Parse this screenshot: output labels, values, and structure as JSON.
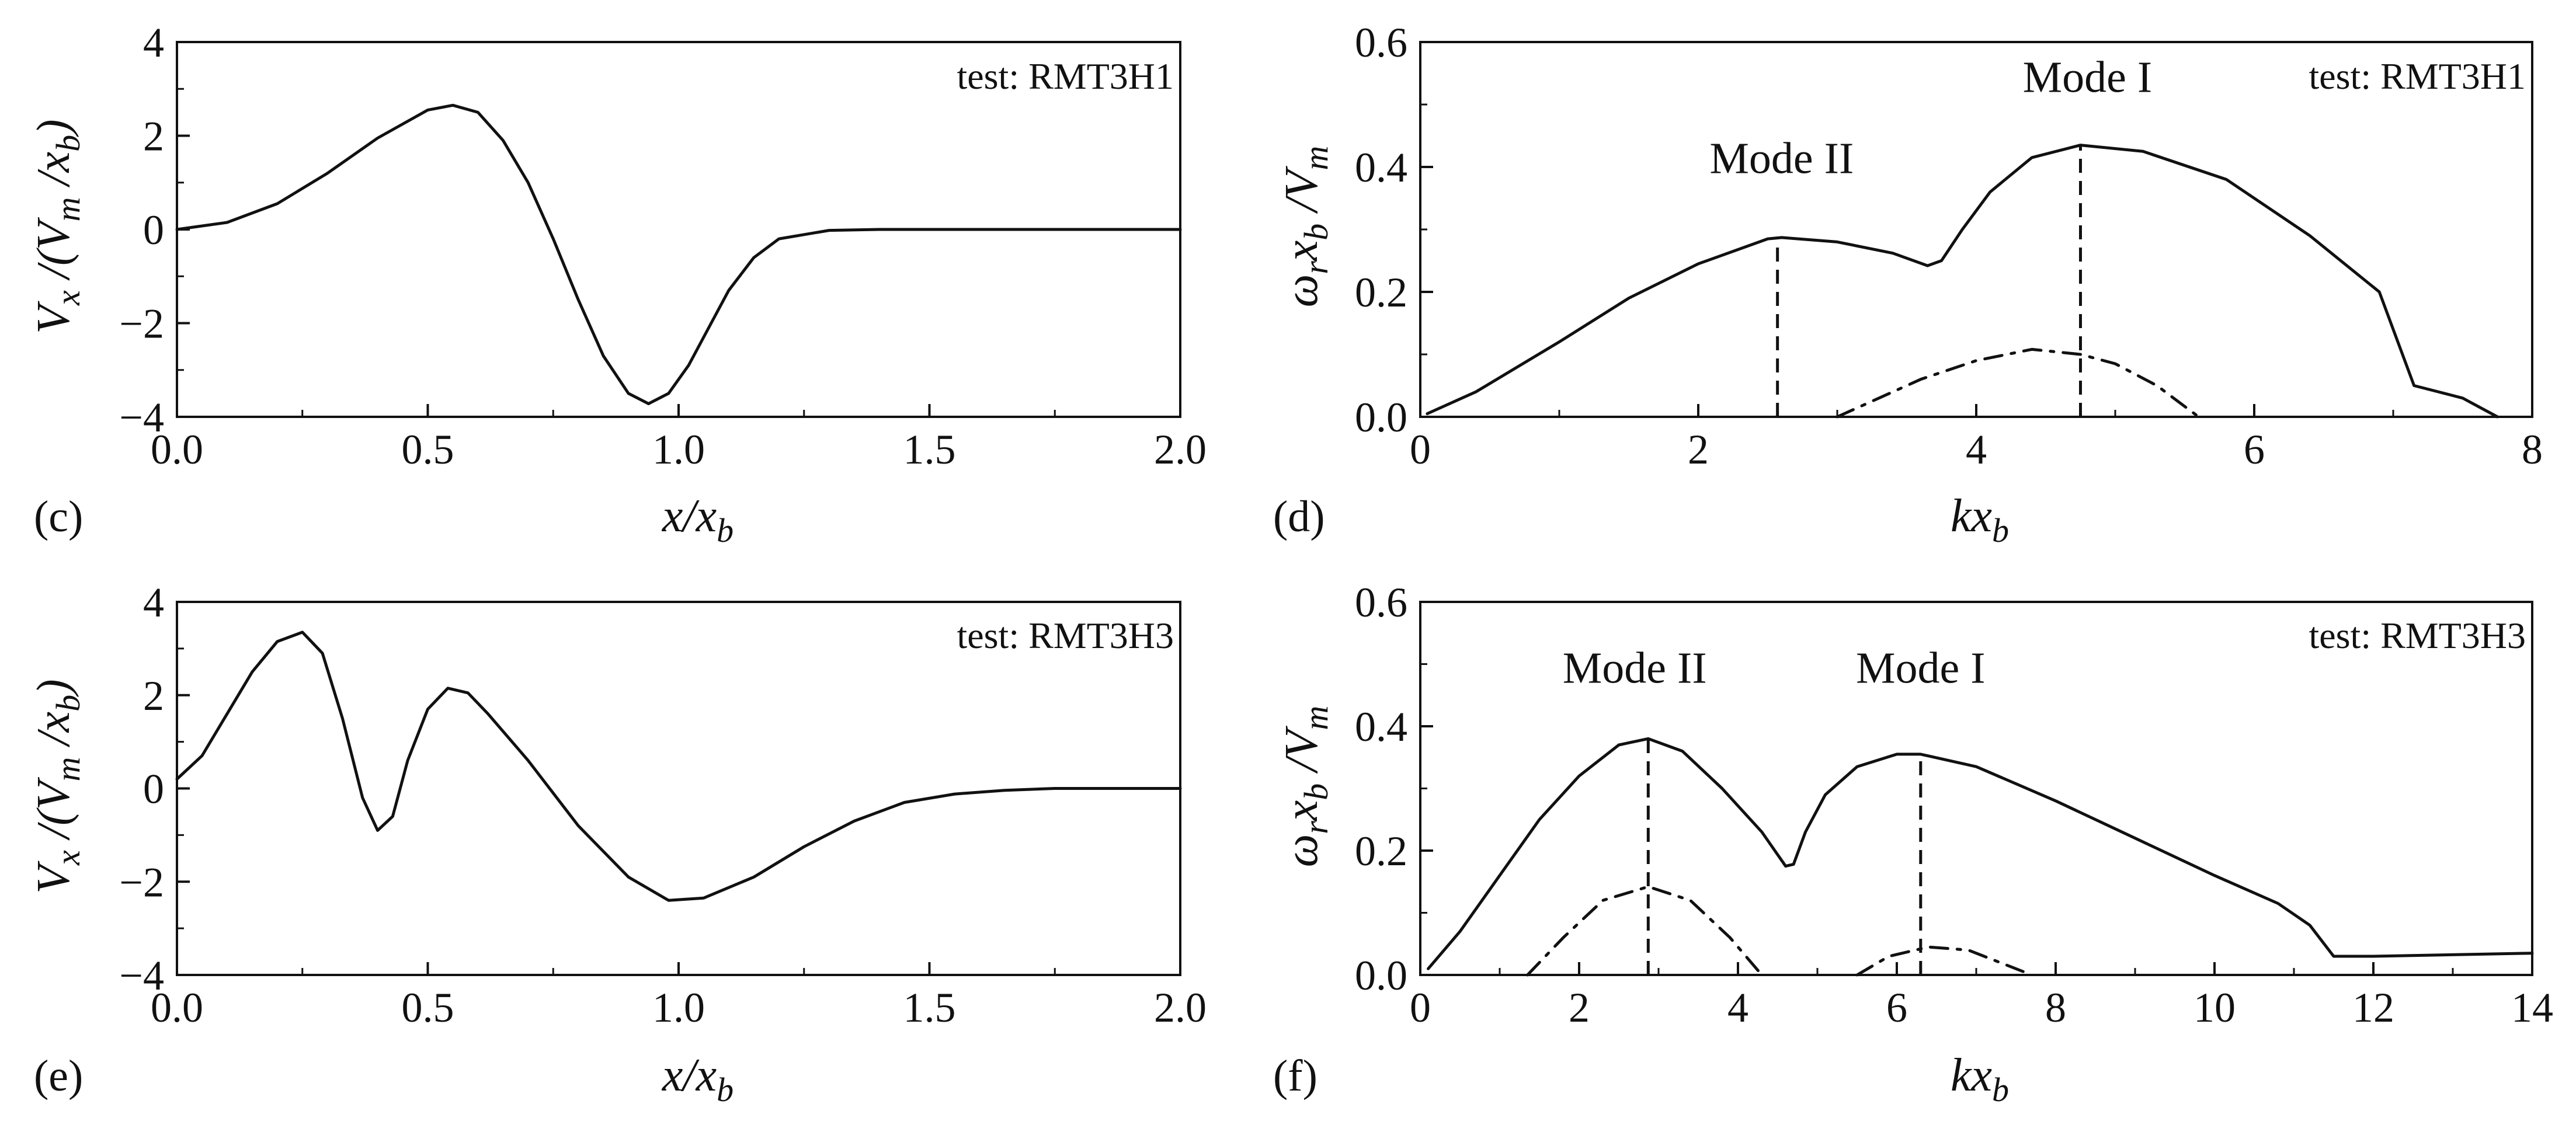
{
  "chart_data": [
    {
      "id": "c",
      "panel_letter": "(c)",
      "type": "line",
      "xlabel": "x/x_b",
      "ylabel": "V_x/(V_m/x_b)",
      "xlim": [
        0,
        2
      ],
      "ylim": [
        -4,
        4
      ],
      "xticks": [
        0,
        0.5,
        1,
        1.5,
        2
      ],
      "xtick_labels": [
        "0.0",
        "0.5",
        "1.0",
        "1.5",
        "2.0"
      ],
      "yticks": [
        -4,
        -2,
        0,
        2,
        4
      ],
      "ytick_labels": [
        "−4",
        "−2",
        "0",
        "2",
        "4"
      ],
      "test_label": "test: RMT3H1",
      "annotations": [],
      "series": [
        {
          "style": "solid",
          "points": [
            [
              0,
              0
            ],
            [
              0.1,
              0.15
            ],
            [
              0.2,
              0.55
            ],
            [
              0.3,
              1.2
            ],
            [
              0.4,
              1.95
            ],
            [
              0.5,
              2.55
            ],
            [
              0.55,
              2.65
            ],
            [
              0.6,
              2.5
            ],
            [
              0.65,
              1.9
            ],
            [
              0.7,
              1.0
            ],
            [
              0.75,
              -0.2
            ],
            [
              0.8,
              -1.5
            ],
            [
              0.85,
              -2.7
            ],
            [
              0.9,
              -3.5
            ],
            [
              0.94,
              -3.72
            ],
            [
              0.98,
              -3.5
            ],
            [
              1.02,
              -2.9
            ],
            [
              1.06,
              -2.1
            ],
            [
              1.1,
              -1.3
            ],
            [
              1.15,
              -0.6
            ],
            [
              1.2,
              -0.2
            ],
            [
              1.3,
              -0.02
            ],
            [
              1.4,
              0
            ],
            [
              2.0,
              0
            ]
          ]
        }
      ]
    },
    {
      "id": "d",
      "panel_letter": "(d)",
      "type": "line",
      "xlabel": "kx_b",
      "ylabel": "ω_r x_b/V_m",
      "xlim": [
        0,
        8
      ],
      "ylim": [
        0,
        0.6
      ],
      "xticks": [
        0,
        2,
        4,
        6,
        8
      ],
      "xtick_labels": [
        "0",
        "2",
        "4",
        "6",
        "8"
      ],
      "yticks": [
        0,
        0.2,
        0.4,
        0.6
      ],
      "ytick_labels": [
        "0.0",
        "0.2",
        "0.4",
        "0.6"
      ],
      "test_label": "test: RMT3H1",
      "annotations": [
        {
          "text": "Mode II",
          "x": 2.6,
          "y": 0.39
        },
        {
          "text": "Mode I",
          "x": 4.8,
          "y": 0.52
        }
      ],
      "vlines": [
        {
          "x": 2.57,
          "y": 0.287
        },
        {
          "x": 4.75,
          "y": 0.435
        }
      ],
      "series": [
        {
          "style": "solid",
          "points": [
            [
              0.05,
              0.005
            ],
            [
              0.4,
              0.04
            ],
            [
              1.0,
              0.12
            ],
            [
              1.5,
              0.19
            ],
            [
              2.0,
              0.245
            ],
            [
              2.5,
              0.285
            ],
            [
              2.6,
              0.287
            ],
            [
              3.0,
              0.28
            ],
            [
              3.4,
              0.262
            ],
            [
              3.65,
              0.242
            ],
            [
              3.75,
              0.25
            ],
            [
              3.9,
              0.3
            ],
            [
              4.1,
              0.36
            ],
            [
              4.4,
              0.415
            ],
            [
              4.75,
              0.435
            ],
            [
              5.2,
              0.425
            ],
            [
              5.8,
              0.38
            ],
            [
              6.4,
              0.29
            ],
            [
              6.9,
              0.2
            ],
            [
              7.0,
              0.14
            ],
            [
              7.15,
              0.05
            ],
            [
              7.5,
              0.03
            ],
            [
              7.75,
              0.0
            ]
          ]
        },
        {
          "style": "dashdot",
          "points": [
            [
              3.0,
              0.0
            ],
            [
              3.2,
              0.02
            ],
            [
              3.6,
              0.06
            ],
            [
              4.0,
              0.09
            ],
            [
              4.4,
              0.108
            ],
            [
              4.75,
              0.1
            ],
            [
              5.0,
              0.085
            ],
            [
              5.3,
              0.05
            ],
            [
              5.6,
              0.0
            ]
          ]
        }
      ]
    },
    {
      "id": "e",
      "panel_letter": "(e)",
      "type": "line",
      "xlabel": "x/x_b",
      "ylabel": "V_x/(V_m/x_b)",
      "xlim": [
        0,
        2
      ],
      "ylim": [
        -4,
        4
      ],
      "xticks": [
        0,
        0.5,
        1,
        1.5,
        2
      ],
      "xtick_labels": [
        "0.0",
        "0.5",
        "1.0",
        "1.5",
        "2.0"
      ],
      "yticks": [
        -4,
        -2,
        0,
        2,
        4
      ],
      "ytick_labels": [
        "−4",
        "−2",
        "0",
        "2",
        "4"
      ],
      "test_label": "test: RMT3H3",
      "annotations": [],
      "series": [
        {
          "style": "solid",
          "points": [
            [
              0,
              0.2
            ],
            [
              0.05,
              0.7
            ],
            [
              0.1,
              1.6
            ],
            [
              0.15,
              2.5
            ],
            [
              0.2,
              3.15
            ],
            [
              0.25,
              3.35
            ],
            [
              0.29,
              2.9
            ],
            [
              0.33,
              1.5
            ],
            [
              0.37,
              -0.2
            ],
            [
              0.4,
              -0.9
            ],
            [
              0.43,
              -0.6
            ],
            [
              0.46,
              0.6
            ],
            [
              0.5,
              1.7
            ],
            [
              0.54,
              2.15
            ],
            [
              0.58,
              2.05
            ],
            [
              0.62,
              1.6
            ],
            [
              0.7,
              0.6
            ],
            [
              0.8,
              -0.8
            ],
            [
              0.9,
              -1.9
            ],
            [
              0.98,
              -2.4
            ],
            [
              1.05,
              -2.35
            ],
            [
              1.15,
              -1.9
            ],
            [
              1.25,
              -1.25
            ],
            [
              1.35,
              -0.7
            ],
            [
              1.45,
              -0.3
            ],
            [
              1.55,
              -0.12
            ],
            [
              1.65,
              -0.04
            ],
            [
              1.75,
              0
            ],
            [
              2.0,
              0
            ]
          ]
        }
      ]
    },
    {
      "id": "f",
      "panel_letter": "(f)",
      "type": "line",
      "xlabel": "kx_b",
      "ylabel": "ω_r x_b/V_m",
      "xlim": [
        0,
        14
      ],
      "ylim": [
        0,
        0.6
      ],
      "xticks": [
        0,
        2,
        4,
        6,
        8,
        10,
        12,
        14
      ],
      "xtick_labels": [
        "0",
        "2",
        "4",
        "6",
        "8",
        "10",
        "12",
        "14"
      ],
      "yticks": [
        0,
        0.2,
        0.4,
        0.6
      ],
      "ytick_labels": [
        "0.0",
        "0.2",
        "0.4",
        "0.6"
      ],
      "test_label": "test: RMT3H3",
      "annotations": [
        {
          "text": "Mode II",
          "x": 2.7,
          "y": 0.47
        },
        {
          "text": "Mode I",
          "x": 6.3,
          "y": 0.47
        }
      ],
      "vlines": [
        {
          "x": 2.87,
          "y": 0.38
        },
        {
          "x": 6.3,
          "y": 0.355
        }
      ],
      "series": [
        {
          "style": "solid",
          "points": [
            [
              0.1,
              0.01
            ],
            [
              0.5,
              0.07
            ],
            [
              1.0,
              0.16
            ],
            [
              1.5,
              0.25
            ],
            [
              2.0,
              0.32
            ],
            [
              2.5,
              0.37
            ],
            [
              2.87,
              0.38
            ],
            [
              3.3,
              0.36
            ],
            [
              3.8,
              0.3
            ],
            [
              4.3,
              0.23
            ],
            [
              4.6,
              0.175
            ],
            [
              4.7,
              0.178
            ],
            [
              4.85,
              0.23
            ],
            [
              5.1,
              0.29
            ],
            [
              5.5,
              0.335
            ],
            [
              6.0,
              0.355
            ],
            [
              6.3,
              0.355
            ],
            [
              7.0,
              0.335
            ],
            [
              8.0,
              0.28
            ],
            [
              9.0,
              0.22
            ],
            [
              10.0,
              0.16
            ],
            [
              10.8,
              0.115
            ],
            [
              11.2,
              0.08
            ],
            [
              11.5,
              0.03
            ],
            [
              12.0,
              0.03
            ],
            [
              14.0,
              0.035
            ]
          ]
        },
        {
          "style": "dashdot",
          "points": [
            [
              1.35,
              0.0
            ],
            [
              1.8,
              0.06
            ],
            [
              2.3,
              0.12
            ],
            [
              2.87,
              0.142
            ],
            [
              3.4,
              0.12
            ],
            [
              3.9,
              0.06
            ],
            [
              4.3,
              0.0
            ]
          ]
        },
        {
          "style": "dashdot",
          "points": [
            [
              5.5,
              0.0
            ],
            [
              5.9,
              0.03
            ],
            [
              6.4,
              0.045
            ],
            [
              6.9,
              0.04
            ],
            [
              7.3,
              0.02
            ],
            [
              7.7,
              0.0
            ]
          ]
        }
      ]
    }
  ]
}
